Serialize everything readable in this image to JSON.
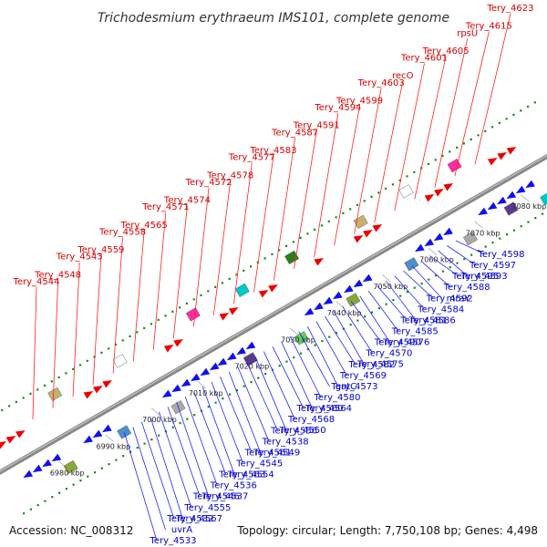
{
  "title": "Trichodesmium erythraeum IMS101, complete genome",
  "accession_text": "Accession: NC_008312",
  "topology_text": "Topology: circular; Length: 7,750,108 bp; Genes: 4,498",
  "colors": {
    "forward": "#ee0000",
    "reverse": "#1010ee",
    "backbone": "#888888",
    "dots": "#1a8a1a",
    "leader_red": "#ff2222",
    "leader_blue": "#2222ff"
  },
  "tick_marks": [
    "6980 kbp",
    "6990 kbp",
    "7000 kbp",
    "7010 kbp",
    "7020 kbp",
    "7030 kbp",
    "7040 kbp",
    "7050 kbp",
    "7060 kbp",
    "7070 kbp",
    "7080 kbp"
  ],
  "forward_gene_labels": [
    "Tery_4623",
    "Tery_4615",
    "rpsU",
    "Tery_4605",
    "Tery_4601",
    "recO",
    "Tery_4603",
    "Tery_4599",
    "Tery_4594",
    "Tery_4591",
    "Tery_4587",
    "Tery_4583",
    "Tery_4577",
    "Tery_4578",
    "Tery_4572",
    "Tery_4574",
    "Tery_4571",
    "Tery_4565",
    "Tery_4558",
    "Tery_4559",
    "Tery_4543",
    "Tery_4548",
    "Tery_4544"
  ],
  "reverse_gene_labels": [
    "Tery_4598",
    "Tery_4597",
    "Tery_4593",
    "Tery_4595",
    "Tery_4588",
    "mraY",
    "Tery_4592",
    "Tery_4584",
    "Tery_4586",
    "Tery_4581",
    "Tery_4585",
    "Tery_4576",
    "Tery_4590",
    "Tery_4570",
    "Tery_4575",
    "Tery_4582",
    "Tery_4569",
    "Tery_4573",
    "gatC",
    "Tery_4580",
    "Tery_4564",
    "Tery_4560",
    "Tery_4568",
    "Tery_4550",
    "Tery_4556",
    "Tery_4538",
    "Tery_4549",
    "Tery_4561",
    "Tery_4545",
    "Tery_4554",
    "Tery_4563",
    "Tery_4536",
    "Tery_4537",
    "Tery_4546",
    "Tery_4555",
    "Tery_4567",
    "Tery_4532",
    "uvrA",
    "Tery_4533"
  ]
}
